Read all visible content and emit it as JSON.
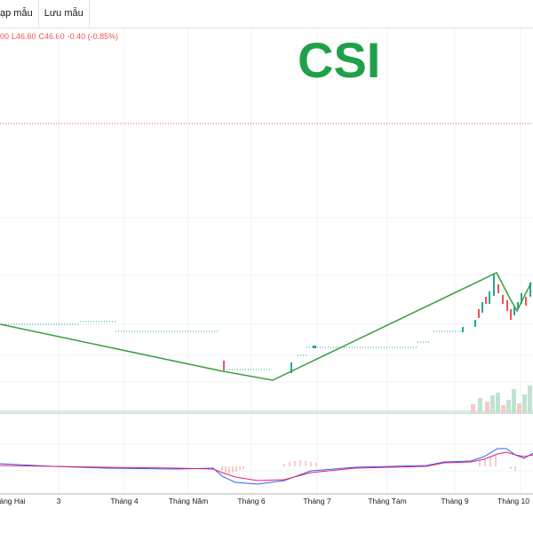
{
  "toolbar": {
    "template_label": "ạp mẫu",
    "save_label": "Lưu mẫu"
  },
  "ohlc": {
    "open_partial": "00",
    "low": "L46.60",
    "close": "C46.60",
    "change": "-0.40 (-0.85%)"
  },
  "title": "CSI",
  "colors": {
    "up": "#26a69a",
    "down": "#ef5350",
    "trend": "#3a9e3f",
    "macd": "#2962ff",
    "signal": "#e91e63"
  },
  "chart_data": {
    "type": "line",
    "x_labels": [
      "áng Hai",
      "3",
      "Tháng 4",
      "Tháng Năm",
      "Tháng 6",
      "Tháng 7",
      "Tháng Tám",
      "Tháng 9",
      "Tháng 10"
    ]
  }
}
